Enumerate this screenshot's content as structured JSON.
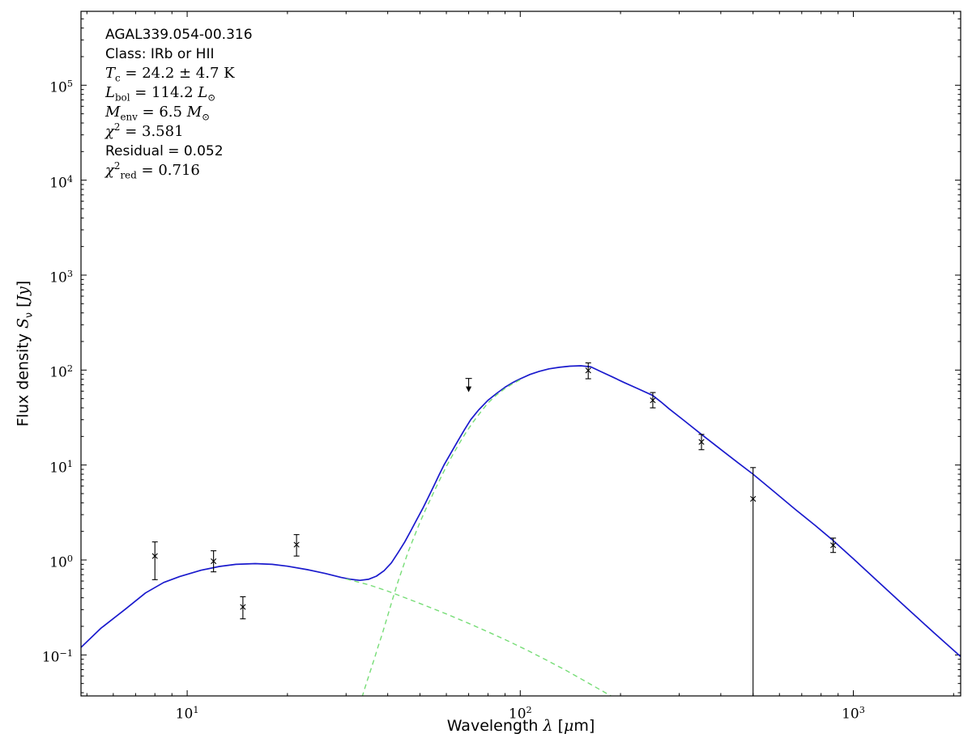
{
  "chart_data": {
    "type": "line",
    "title": "",
    "xlabel": "Wavelength *λ* [*μ*m]",
    "ylabel": "Flux density *S*_{ν} [*Jy*]",
    "xscale": "log",
    "yscale": "log",
    "xlim": [
      4.8,
      2100
    ],
    "ylim": [
      0.037,
      600000
    ],
    "grid": false,
    "legend": "none",
    "x_ticks": {
      "values": [
        10,
        100,
        1000
      ],
      "labels": [
        "10^{1}",
        "10^{2}",
        "10^{3}"
      ]
    },
    "y_ticks": {
      "values": [
        0.1,
        1,
        10,
        100,
        1000,
        10000,
        100000
      ],
      "labels": [
        "10^{−1}",
        "10^{0}",
        "10^{1}",
        "10^{2}",
        "10^{3}",
        "10^{4}",
        "10^{5}"
      ]
    },
    "colors": {
      "model_total": "#1a1acd",
      "model_components": "#77dd77",
      "data": "#000000"
    },
    "series": [
      {
        "name": "total-model-fit",
        "style": "solid",
        "color_key": "model_total",
        "points": [
          [
            4.8,
            0.12
          ],
          [
            5.5,
            0.19
          ],
          [
            6.5,
            0.3
          ],
          [
            7.5,
            0.45
          ],
          [
            8.5,
            0.58
          ],
          [
            9.5,
            0.67
          ],
          [
            11,
            0.78
          ],
          [
            12.5,
            0.855
          ],
          [
            14,
            0.9
          ],
          [
            16,
            0.915
          ],
          [
            18,
            0.9
          ],
          [
            20,
            0.86
          ],
          [
            23,
            0.79
          ],
          [
            26,
            0.72
          ],
          [
            29,
            0.655
          ],
          [
            31,
            0.625
          ],
          [
            33,
            0.61
          ],
          [
            35,
            0.625
          ],
          [
            37,
            0.675
          ],
          [
            39,
            0.77
          ],
          [
            41,
            0.93
          ],
          [
            43,
            1.2
          ],
          [
            45,
            1.55
          ],
          [
            47,
            2.05
          ],
          [
            49,
            2.7
          ],
          [
            51,
            3.5
          ],
          [
            53,
            4.6
          ],
          [
            55,
            6
          ],
          [
            57,
            7.8
          ],
          [
            59,
            10
          ],
          [
            62,
            13.5
          ],
          [
            65,
            18
          ],
          [
            68,
            23.5
          ],
          [
            71,
            30
          ],
          [
            75,
            38
          ],
          [
            80,
            48
          ],
          [
            85,
            57
          ],
          [
            90,
            66
          ],
          [
            95,
            74
          ],
          [
            100,
            81
          ],
          [
            107,
            90
          ],
          [
            114,
            97
          ],
          [
            122,
            103
          ],
          [
            131,
            107
          ],
          [
            141,
            110
          ],
          [
            152,
            111
          ],
          [
            163,
            108
          ],
          [
            175,
            96
          ],
          [
            190,
            84
          ],
          [
            205,
            74
          ],
          [
            225,
            64
          ],
          [
            250,
            54
          ],
          [
            265,
            46
          ],
          [
            280,
            39
          ],
          [
            310,
            29.5
          ],
          [
            350,
            21
          ],
          [
            400,
            14.6
          ],
          [
            450,
            10.6
          ],
          [
            500,
            8
          ],
          [
            580,
            5.2
          ],
          [
            670,
            3.4
          ],
          [
            770,
            2.3
          ],
          [
            870,
            1.6
          ],
          [
            1000,
            1.03
          ],
          [
            1200,
            0.57
          ],
          [
            1450,
            0.31
          ],
          [
            1750,
            0.17
          ],
          [
            2100,
            0.096
          ]
        ]
      },
      {
        "name": "warm-component",
        "style": "dashed",
        "color_key": "model_components",
        "points": [
          [
            30,
            0.63
          ],
          [
            35,
            0.55
          ],
          [
            40,
            0.47
          ],
          [
            46,
            0.39
          ],
          [
            52,
            0.33
          ],
          [
            60,
            0.27
          ],
          [
            70,
            0.215
          ],
          [
            80,
            0.175
          ],
          [
            92,
            0.14
          ],
          [
            105,
            0.112
          ],
          [
            120,
            0.088
          ],
          [
            138,
            0.068
          ],
          [
            158,
            0.052
          ],
          [
            180,
            0.04
          ],
          [
            198,
            0.033
          ]
        ]
      },
      {
        "name": "cold-component",
        "style": "dashed",
        "color_key": "model_components",
        "points": [
          [
            33.5,
            0.036
          ],
          [
            34.5,
            0.05
          ],
          [
            35.5,
            0.068
          ],
          [
            36.5,
            0.092
          ],
          [
            37.5,
            0.125
          ],
          [
            38.5,
            0.165
          ],
          [
            40,
            0.26
          ],
          [
            41.5,
            0.4
          ],
          [
            43,
            0.6
          ],
          [
            44.5,
            0.85
          ],
          [
            46,
            1.2
          ],
          [
            48,
            1.75
          ],
          [
            50,
            2.5
          ],
          [
            52,
            3.4
          ],
          [
            54,
            4.5
          ],
          [
            56,
            5.9
          ],
          [
            58,
            7.6
          ],
          [
            60,
            9.7
          ],
          [
            63,
            13.2
          ],
          [
            66,
            17.5
          ],
          [
            69,
            22.5
          ],
          [
            72,
            28
          ],
          [
            76,
            36
          ],
          [
            80,
            45
          ],
          [
            85,
            55
          ],
          [
            90,
            64
          ],
          [
            95,
            72
          ],
          [
            100,
            79
          ]
        ]
      }
    ],
    "data_points": {
      "marker": "x",
      "points": [
        {
          "x": 8,
          "y": 1.1,
          "lo": 0.62,
          "hi": 1.55
        },
        {
          "x": 12,
          "y": 0.97,
          "lo": 0.75,
          "hi": 1.25
        },
        {
          "x": 14.7,
          "y": 0.32,
          "lo": 0.24,
          "hi": 0.41
        },
        {
          "x": 21.3,
          "y": 1.45,
          "lo": 1.1,
          "hi": 1.85
        },
        {
          "x": 70,
          "y": 74,
          "upper_limit": true
        },
        {
          "x": 160,
          "y": 99,
          "lo": 81,
          "hi": 119
        },
        {
          "x": 250,
          "y": 48,
          "lo": 40,
          "hi": 58
        },
        {
          "x": 350,
          "y": 17.5,
          "lo": 14.5,
          "hi": 21
        },
        {
          "x": 500,
          "y": 4.4,
          "lo": 0.037,
          "hi": 9.4,
          "lo_clipped": true
        },
        {
          "x": 870,
          "y": 1.43,
          "lo": 1.2,
          "hi": 1.7
        }
      ]
    },
    "annotation": {
      "lines": [
        {
          "text": "AGAL339.054-00.316",
          "font": "sans"
        },
        {
          "text": "Class: IRb or HII",
          "font": "sans"
        },
        {
          "text": "*T*_{c} = 24.2 ± 4.7 K",
          "font": "math"
        },
        {
          "text": "*L*_{bol} = 114.2 *L*_{⊙}",
          "font": "math"
        },
        {
          "text": "*M*_{env} = 6.5 *M*_{⊙}",
          "font": "math"
        },
        {
          "text": "*χ*^{2} = 3.581",
          "font": "math"
        },
        {
          "text": "Residual = 0.052",
          "font": "sans"
        },
        {
          "text": "*χ*^{2}_{red} = 0.716",
          "font": "math"
        }
      ]
    }
  }
}
